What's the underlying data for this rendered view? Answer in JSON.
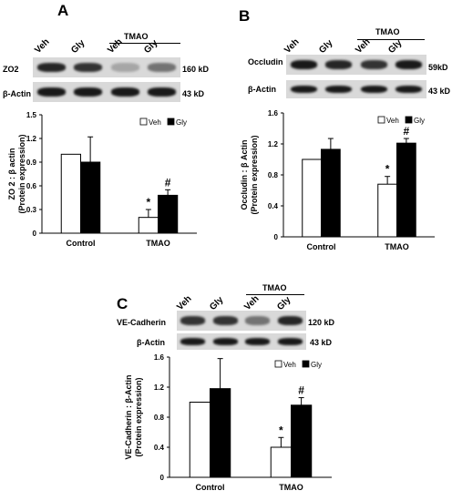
{
  "panels": [
    {
      "letter": "A",
      "lanes": [
        "Veh",
        "Gly",
        "Veh",
        "Gly"
      ],
      "group_label": "TMAO",
      "blots": [
        {
          "protein": "ZO2",
          "size": "160 kD",
          "intensity": [
            0.85,
            0.8,
            0.35,
            0.55
          ]
        },
        {
          "protein": "β-Actin",
          "size": "43 kD",
          "intensity": [
            0.9,
            0.9,
            0.9,
            0.9
          ]
        }
      ],
      "chart_data": {
        "type": "bar",
        "categories": [
          "Control",
          "TMAO"
        ],
        "series": [
          {
            "name": "Veh",
            "values": [
              1.0,
              0.2
            ],
            "errors": [
              0.0,
              0.1
            ],
            "color": "#ffffff"
          },
          {
            "name": "Gly",
            "values": [
              0.9,
              0.48
            ],
            "errors": [
              0.32,
              0.07
            ],
            "color": "#000000"
          }
        ],
        "ylabel": "ZO 2 : β actin\n(Protein expression)",
        "ylim": [
          0,
          1.5
        ],
        "yticks": [
          "0",
          "0.3",
          "0.6",
          "0.9",
          "1.2",
          "1.5"
        ],
        "annotations": [
          {
            "category": 1,
            "series": 0,
            "text": "*"
          },
          {
            "category": 1,
            "series": 1,
            "text": "#"
          }
        ],
        "legend": "top-right"
      }
    },
    {
      "letter": "B",
      "lanes": [
        "Veh",
        "Gly",
        "Veh",
        "Gly"
      ],
      "group_label": "TMAO",
      "blots": [
        {
          "protein": "Occludin",
          "size": "59kD",
          "intensity": [
            0.9,
            0.85,
            0.8,
            0.9
          ]
        },
        {
          "protein": "β-Actin",
          "size": "43 kD",
          "intensity": [
            0.9,
            0.9,
            0.9,
            0.9
          ]
        }
      ],
      "chart_data": {
        "type": "bar",
        "categories": [
          "Control",
          "TMAO"
        ],
        "series": [
          {
            "name": "Veh",
            "values": [
              1.0,
              0.68
            ],
            "errors": [
              0.0,
              0.1
            ],
            "color": "#ffffff"
          },
          {
            "name": "Gly",
            "values": [
              1.13,
              1.21
            ],
            "errors": [
              0.14,
              0.06
            ],
            "color": "#000000"
          }
        ],
        "ylabel": "Occludin : β Actin\n(Protein expression)",
        "ylim": [
          0,
          1.6
        ],
        "yticks": [
          "0",
          "0.4",
          "0.8",
          "1.2",
          "1.6"
        ],
        "annotations": [
          {
            "category": 1,
            "series": 0,
            "text": "*"
          },
          {
            "category": 1,
            "series": 1,
            "text": "#"
          }
        ],
        "legend": "top-right"
      }
    },
    {
      "letter": "C",
      "lanes": [
        "Veh",
        "Gly",
        "Veh",
        "Gly"
      ],
      "group_label": "TMAO",
      "blots": [
        {
          "protein": "VE-Cadherin",
          "size": "120 kD",
          "intensity": [
            0.8,
            0.8,
            0.55,
            0.85
          ]
        },
        {
          "protein": "β-Actin",
          "size": "43 kD",
          "intensity": [
            0.9,
            0.9,
            0.9,
            0.9
          ]
        }
      ],
      "chart_data": {
        "type": "bar",
        "categories": [
          "Control",
          "TMAO"
        ],
        "series": [
          {
            "name": "Veh",
            "values": [
              1.0,
              0.4
            ],
            "errors": [
              0.0,
              0.13
            ],
            "color": "#ffffff"
          },
          {
            "name": "Gly",
            "values": [
              1.18,
              0.96
            ],
            "errors": [
              0.4,
              0.1
            ],
            "color": "#000000"
          }
        ],
        "ylabel": "VE-Cadherin : β-Actin\n(Protein expression)",
        "ylim": [
          0,
          1.6
        ],
        "yticks": [
          "0",
          "0.4",
          "0.8",
          "1.2",
          "1.6"
        ],
        "annotations": [
          {
            "category": 1,
            "series": 0,
            "text": "*"
          },
          {
            "category": 1,
            "series": 1,
            "text": "#"
          }
        ],
        "legend": "top-right"
      }
    }
  ]
}
